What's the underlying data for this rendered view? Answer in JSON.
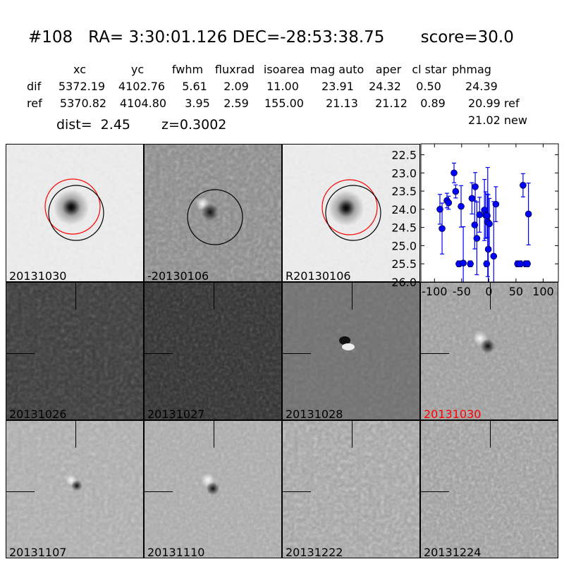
{
  "header": {
    "title": "#108   RA= 3:30:01.126 DEC=-28:53:38.75       score=30.0",
    "columns": [
      "xc",
      "yc",
      "fwhm",
      "fluxrad",
      "isoarea",
      "mag auto",
      "aper",
      "cl star",
      "phmag"
    ],
    "rows": [
      {
        "label": "dif",
        "values": [
          "5372.19",
          "4102.76",
          "5.61",
          "2.09",
          "11.00",
          "23.91",
          "24.32",
          "0.50",
          "24.39"
        ]
      },
      {
        "label": "ref",
        "values": [
          "5370.82",
          "4104.80",
          "3.95",
          "2.59",
          "155.00",
          "21.13",
          "21.12",
          "0.89",
          "20.99 ref"
        ]
      }
    ],
    "extra_phmag": "21.02 new",
    "dist": "dist=  2.45",
    "z": "z=0.3002"
  },
  "panels": [
    {
      "label": "20131030",
      "kind": "ref-stamp"
    },
    {
      "label": "-20130106",
      "kind": "diff-stamp"
    },
    {
      "label": "R20130106",
      "kind": "ref-stamp"
    },
    {
      "label": "20131026",
      "kind": "dark"
    },
    {
      "label": "20131027",
      "kind": "dark"
    },
    {
      "label": "20131028",
      "kind": "mid"
    },
    {
      "label": "20131030",
      "kind": "light",
      "highlight": true
    },
    {
      "label": "20131107",
      "kind": "light"
    },
    {
      "label": "20131110",
      "kind": "light"
    },
    {
      "label": "20131222",
      "kind": "light"
    },
    {
      "label": "20131224",
      "kind": "light"
    }
  ],
  "colors": {
    "series": "#0000ff",
    "highlight_label": "#ff0000",
    "circle_red": "#ff0000",
    "circle_black": "#000000"
  },
  "chart_data": {
    "type": "scatter",
    "error_bars": true,
    "xlim": [
      -125,
      128
    ],
    "ylim": [
      26.0,
      22.2
    ],
    "y_inverted": true,
    "xticks": [
      "-100",
      "-50",
      "0",
      "50",
      "100"
    ],
    "xtick_values": [
      -100,
      -50,
      0,
      50,
      100
    ],
    "yticks": [
      "22.5",
      "23.0",
      "23.5",
      "24.0",
      "24.5",
      "25.0",
      "25.5",
      "26.0"
    ],
    "ytick_values": [
      22.5,
      23.0,
      23.5,
      24.0,
      24.5,
      25.0,
      25.5,
      26.0
    ],
    "points": [
      {
        "x": -90,
        "y": 24.0,
        "err": 0.41
      },
      {
        "x": -86,
        "y": 24.53,
        "err": 0.7
      },
      {
        "x": -77,
        "y": 23.76,
        "err": 0.2
      },
      {
        "x": -74,
        "y": 23.82,
        "err": 0.18
      },
      {
        "x": -64,
        "y": 23.0,
        "err": 0.27
      },
      {
        "x": -61,
        "y": 23.51,
        "err": 0.18
      },
      {
        "x": -51,
        "y": 23.92,
        "err": 0.57
      },
      {
        "x": -55,
        "y": 25.5,
        "err": 0.08
      },
      {
        "x": -47,
        "y": 25.48,
        "err": 1.0
      },
      {
        "x": -34,
        "y": 25.5,
        "err": 0.08
      },
      {
        "x": -31,
        "y": 23.7,
        "err": 0.43
      },
      {
        "x": -25,
        "y": 23.38,
        "err": 0.39
      },
      {
        "x": -26,
        "y": 24.43,
        "err": 0.66
      },
      {
        "x": -22,
        "y": 24.8,
        "err": 1.0
      },
      {
        "x": -17,
        "y": 24.15,
        "err": 0.48
      },
      {
        "x": -8,
        "y": 24.02,
        "err": 0.84
      },
      {
        "x": -4,
        "y": 25.5,
        "err": 0.08
      },
      {
        "x": -6,
        "y": 24.16,
        "err": 0.64
      },
      {
        "x": -3,
        "y": 24.18,
        "err": 0.6
      },
      {
        "x": -2,
        "y": 24.35,
        "err": 1.5
      },
      {
        "x": -1,
        "y": 25.1,
        "err": 1.5
      },
      {
        "x": 1,
        "y": 24.4,
        "err": 0.7
      },
      {
        "x": 9,
        "y": 25.29,
        "err": 1.5
      },
      {
        "x": 13,
        "y": 23.86,
        "err": 0.48
      },
      {
        "x": 53,
        "y": 25.5,
        "err": 0.08
      },
      {
        "x": 58,
        "y": 25.5,
        "err": 0.08
      },
      {
        "x": 63,
        "y": 23.34,
        "err": 0.32
      },
      {
        "x": 68,
        "y": 25.5,
        "err": 0.08
      },
      {
        "x": 71,
        "y": 25.5,
        "err": 0.08
      },
      {
        "x": 73,
        "y": 24.13,
        "err": 0.85
      }
    ]
  }
}
